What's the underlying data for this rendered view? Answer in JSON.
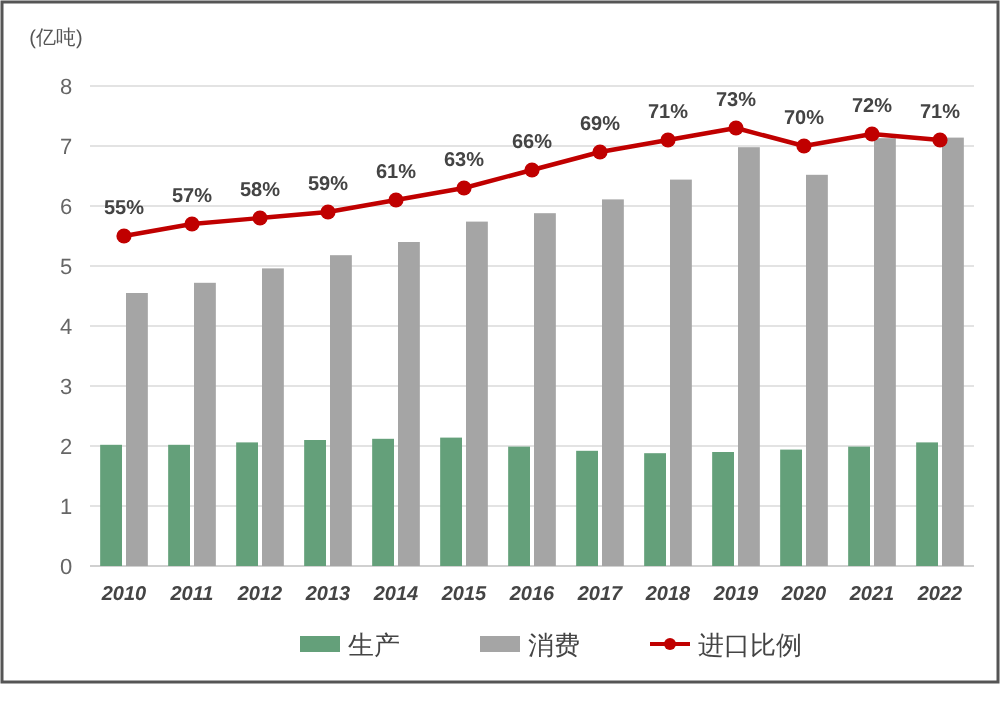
{
  "chart_data": {
    "type": "bar",
    "ylabel": "(亿吨)",
    "categories": [
      "2010",
      "2011",
      "2012",
      "2013",
      "2014",
      "2015",
      "2016",
      "2017",
      "2018",
      "2019",
      "2020",
      "2021",
      "2022"
    ],
    "series": [
      {
        "name": "生产",
        "color": "#64a07a",
        "values": [
          2.02,
          2.02,
          2.06,
          2.1,
          2.12,
          2.14,
          1.99,
          1.92,
          1.88,
          1.9,
          1.94,
          1.99,
          2.06
        ]
      },
      {
        "name": "消费",
        "color": "#a5a5a5",
        "values": [
          4.55,
          4.72,
          4.96,
          5.18,
          5.4,
          5.74,
          5.88,
          6.11,
          6.44,
          6.98,
          6.52,
          7.13,
          7.14
        ]
      },
      {
        "name": "进口比例",
        "type": "line",
        "axis": "y2",
        "color": "#c00000",
        "values": [
          55,
          57,
          58,
          59,
          61,
          63,
          66,
          69,
          71,
          73,
          70,
          72,
          71
        ],
        "value_labels": [
          "55%",
          "57%",
          "58%",
          "59%",
          "61%",
          "63%",
          "66%",
          "69%",
          "71%",
          "73%",
          "70%",
          "72%",
          "71%"
        ]
      }
    ],
    "ylim": [
      0,
      8
    ],
    "yticks": [
      0,
      1,
      2,
      3,
      4,
      5,
      6,
      7,
      8
    ],
    "y2lim": [
      0,
      80
    ],
    "grid": "y",
    "legend": "bottom",
    "marker": "circle",
    "line_style": "solid"
  }
}
